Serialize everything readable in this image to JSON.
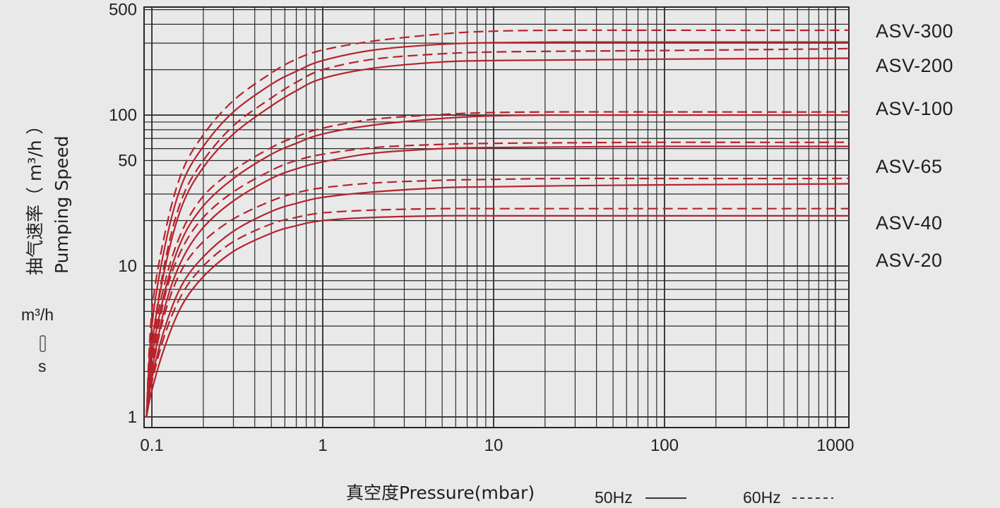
{
  "chart_data": {
    "type": "line",
    "x_scale": "log",
    "y_scale": "log",
    "xlabel": "真空度Pressure(mbar)",
    "ylabel_cn": "抽气速率（ m³/h ）",
    "ylabel_en": "Pumping Speed",
    "unit_top": "m³/h",
    "unit_bottom": "s",
    "xlim": [
      0.09,
      1200
    ],
    "ylim": [
      0.85,
      520
    ],
    "x_ticks": [
      {
        "value": 0.1,
        "label": "0.1"
      },
      {
        "value": 1,
        "label": "1"
      },
      {
        "value": 10,
        "label": "10"
      },
      {
        "value": 100,
        "label": "100"
      },
      {
        "value": 1000,
        "label": "1000"
      }
    ],
    "y_ticks": [
      {
        "value": 1,
        "label": "1"
      },
      {
        "value": 10,
        "label": "10"
      },
      {
        "value": 50,
        "label": "50"
      },
      {
        "value": 100,
        "label": "100"
      },
      {
        "value": 500,
        "label": "500"
      }
    ],
    "grid": true,
    "line_color": "#b8232b",
    "legend": [
      {
        "label": "50Hz",
        "style": "solid"
      },
      {
        "label": "60Hz",
        "style": "dashed"
      }
    ],
    "models": [
      "ASV-300",
      "ASV-200",
      "ASV-100",
      "ASV-65",
      "ASV-40",
      "ASV-20"
    ],
    "series": [
      {
        "name": "ASV-300",
        "freq": "50Hz",
        "x": [
          0.093,
          0.1,
          0.12,
          0.15,
          0.2,
          0.3,
          0.5,
          0.7,
          1,
          2,
          5,
          10,
          25,
          100,
          1000,
          1200
        ],
        "y": [
          1,
          4,
          14,
          35,
          62,
          105,
          160,
          195,
          230,
          270,
          295,
          302,
          305,
          305,
          305,
          305
        ]
      },
      {
        "name": "ASV-300",
        "freq": "60Hz",
        "x": [
          0.093,
          0.1,
          0.12,
          0.15,
          0.2,
          0.3,
          0.5,
          0.7,
          1,
          2,
          5,
          10,
          25,
          100,
          1000,
          1200
        ],
        "y": [
          1,
          5,
          17,
          42,
          74,
          125,
          190,
          235,
          270,
          310,
          345,
          360,
          365,
          365,
          365,
          370
        ]
      },
      {
        "name": "ASV-200",
        "freq": "50Hz",
        "x": [
          0.093,
          0.1,
          0.12,
          0.15,
          0.2,
          0.3,
          0.5,
          0.7,
          1,
          2,
          5,
          10,
          25,
          100,
          1000,
          1200
        ],
        "y": [
          1,
          3,
          10,
          25,
          45,
          75,
          115,
          145,
          175,
          205,
          225,
          230,
          232,
          235,
          238,
          238
        ]
      },
      {
        "name": "ASV-200",
        "freq": "60Hz",
        "x": [
          0.093,
          0.1,
          0.12,
          0.15,
          0.2,
          0.3,
          0.5,
          0.7,
          1,
          2,
          5,
          10,
          25,
          100,
          1000,
          1200
        ],
        "y": [
          1,
          3,
          11,
          28,
          50,
          85,
          130,
          165,
          200,
          235,
          255,
          262,
          265,
          268,
          275,
          278
        ]
      },
      {
        "name": "ASV-100",
        "freq": "50Hz",
        "x": [
          0.093,
          0.1,
          0.12,
          0.15,
          0.2,
          0.3,
          0.5,
          0.7,
          1,
          2,
          5,
          10,
          25,
          100,
          1000,
          1200
        ],
        "y": [
          1,
          2.5,
          7,
          15,
          25,
          38,
          55,
          65,
          75,
          86,
          95,
          99,
          100,
          100,
          100,
          100
        ]
      },
      {
        "name": "ASV-100",
        "freq": "60Hz",
        "x": [
          0.093,
          0.1,
          0.12,
          0.15,
          0.2,
          0.3,
          0.5,
          0.7,
          1,
          2,
          5,
          10,
          25,
          100,
          1000,
          1200
        ],
        "y": [
          1,
          2.8,
          8,
          17,
          29,
          43,
          61,
          72,
          82,
          94,
          101,
          104,
          105,
          105,
          105,
          107
        ]
      },
      {
        "name": "ASV-65",
        "freq": "50Hz",
        "x": [
          0.093,
          0.1,
          0.12,
          0.15,
          0.2,
          0.3,
          0.5,
          0.7,
          1,
          2,
          5,
          10,
          25,
          100,
          1000,
          1200
        ],
        "y": [
          1,
          2,
          5.5,
          11,
          18,
          27,
          38,
          44,
          49,
          56,
          60,
          61,
          61.5,
          62,
          62,
          62
        ]
      },
      {
        "name": "ASV-65",
        "freq": "60Hz",
        "x": [
          0.093,
          0.1,
          0.12,
          0.15,
          0.2,
          0.3,
          0.5,
          0.7,
          1,
          2,
          5,
          10,
          25,
          100,
          1000,
          1200
        ],
        "y": [
          1,
          2.2,
          6.5,
          13,
          21,
          31,
          43,
          50,
          55,
          61,
          64,
          65,
          65.5,
          66,
          66,
          67
        ]
      },
      {
        "name": "ASV-40",
        "freq": "50Hz",
        "x": [
          0.093,
          0.1,
          0.12,
          0.15,
          0.2,
          0.3,
          0.5,
          0.7,
          1,
          2,
          5,
          10,
          25,
          100,
          1000,
          1200
        ],
        "y": [
          1,
          1.8,
          4,
          7.5,
          11.5,
          17,
          23,
          26,
          28.5,
          31,
          33,
          33.5,
          34,
          34.5,
          35,
          35.5
        ]
      },
      {
        "name": "ASV-40",
        "freq": "60Hz",
        "x": [
          0.093,
          0.1,
          0.12,
          0.15,
          0.2,
          0.3,
          0.5,
          0.7,
          1,
          2,
          5,
          10,
          25,
          100,
          1000,
          1200
        ],
        "y": [
          1,
          2,
          5,
          9.5,
          14.5,
          20.5,
          27,
          30.5,
          33,
          35.5,
          37,
          37.5,
          38,
          38,
          38,
          38.5
        ]
      },
      {
        "name": "ASV-20",
        "freq": "50Hz",
        "x": [
          0.093,
          0.1,
          0.12,
          0.15,
          0.2,
          0.3,
          0.5,
          0.7,
          1,
          2,
          5,
          10,
          25,
          100,
          1000,
          1200
        ],
        "y": [
          1,
          1.5,
          3,
          5.5,
          8.5,
          12.5,
          16.5,
          18.5,
          20,
          21,
          21.5,
          21.5,
          21.5,
          21.5,
          21.5,
          21.5
        ]
      },
      {
        "name": "ASV-20",
        "freq": "60Hz",
        "x": [
          0.093,
          0.1,
          0.12,
          0.15,
          0.2,
          0.3,
          0.5,
          0.7,
          1,
          2,
          5,
          10,
          25,
          100,
          1000,
          1200
        ],
        "y": [
          1,
          1.7,
          3.6,
          6.5,
          10,
          14.5,
          19,
          21,
          22.5,
          23.5,
          24,
          24,
          24,
          24,
          24,
          24
        ]
      }
    ]
  }
}
